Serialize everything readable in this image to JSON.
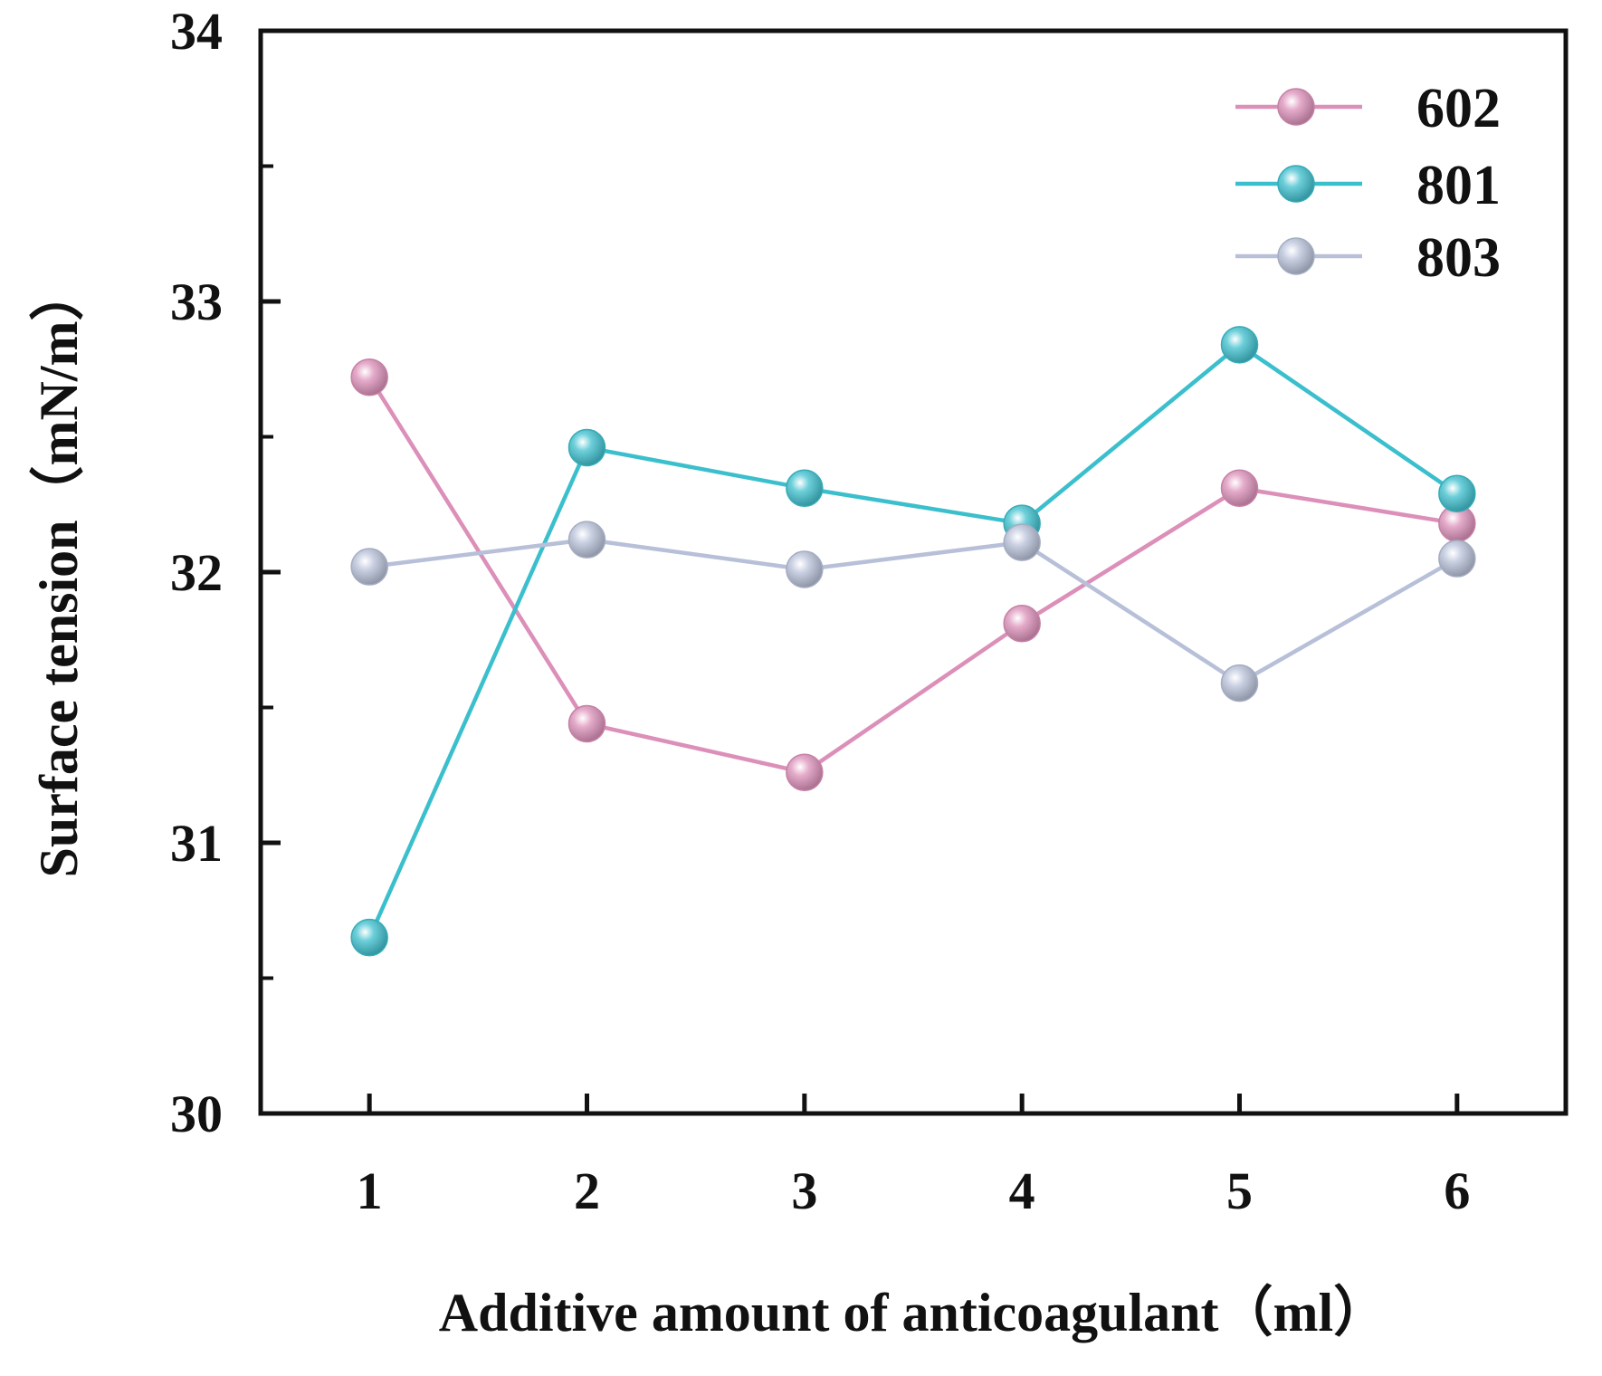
{
  "chart_data": {
    "type": "line",
    "title": "",
    "xlabel": "Additive amount of anticoagulant（ml）",
    "ylabel": "Surface tension（mN/m）",
    "x": [
      1,
      2,
      3,
      4,
      5,
      6
    ],
    "xticks": [
      "1",
      "2",
      "3",
      "4",
      "5",
      "6"
    ],
    "xlim": [
      0.5,
      6.5
    ],
    "ylim": [
      30,
      34
    ],
    "yticks": [
      "30",
      "31",
      "32",
      "33",
      "34"
    ],
    "grid": false,
    "legend_position": "top-right",
    "series": [
      {
        "name": "602",
        "color": "#dc8fb8",
        "values": [
          32.72,
          31.44,
          31.26,
          31.81,
          32.31,
          32.18
        ]
      },
      {
        "name": "801",
        "color": "#3bbfcc",
        "values": [
          30.65,
          32.46,
          32.31,
          32.18,
          32.84,
          32.29
        ]
      },
      {
        "name": "803",
        "color": "#b7c0d8",
        "values": [
          32.02,
          32.12,
          32.01,
          32.11,
          31.59,
          32.05
        ]
      }
    ]
  }
}
